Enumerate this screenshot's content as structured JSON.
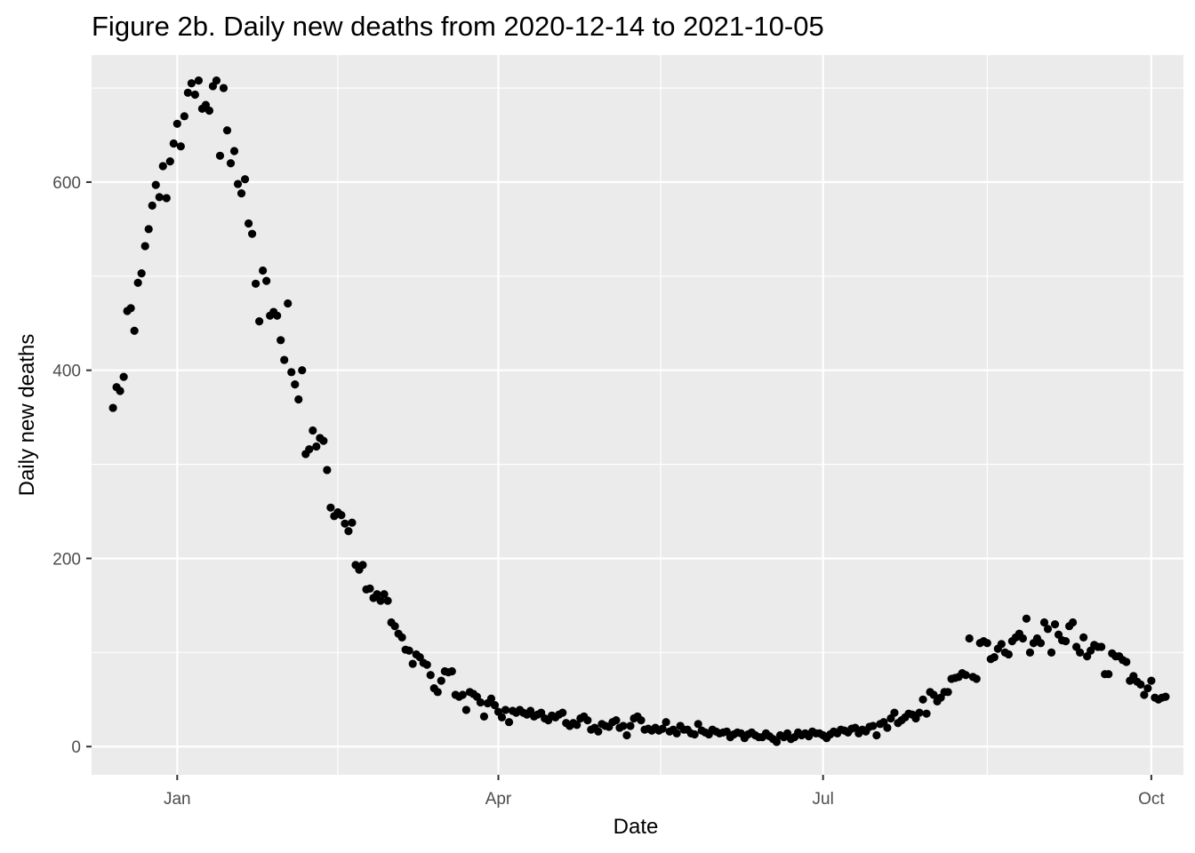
{
  "chart_data": {
    "type": "scatter",
    "title": "Figure 2b. Daily new deaths from 2020-12-14 to 2021-10-05",
    "xlabel": "Date",
    "ylabel": "Daily new deaths",
    "x_start": "2020-12-14",
    "x_end": "2021-10-05",
    "xlim": [
      "2020-12-08",
      "2021-10-10"
    ],
    "ylim": [
      -30,
      735
    ],
    "x_ticks": [
      {
        "date": "2021-01-01",
        "label": "Jan"
      },
      {
        "date": "2021-04-01",
        "label": "Apr"
      },
      {
        "date": "2021-07-01",
        "label": "Jul"
      },
      {
        "date": "2021-10-01",
        "label": "Oct"
      }
    ],
    "y_ticks": [
      {
        "value": 0,
        "label": "0"
      },
      {
        "value": 200,
        "label": "200"
      },
      {
        "value": 400,
        "label": "400"
      },
      {
        "value": 600,
        "label": "600"
      }
    ],
    "grid": true,
    "panel_background": "#ebebeb",
    "grid_color": "#ffffff",
    "point_color": "#000000",
    "series": [
      {
        "values": [
          360,
          382,
          378,
          393,
          463,
          466,
          442,
          493,
          503,
          532,
          550,
          575,
          597,
          584,
          617,
          583,
          622,
          641,
          662,
          638,
          670,
          695,
          705,
          693,
          708,
          678,
          682,
          676,
          702,
          708,
          628,
          700,
          655,
          620,
          633,
          598,
          588,
          603,
          556,
          545,
          492,
          452,
          506,
          495,
          458,
          462,
          458,
          432,
          411,
          471,
          398,
          385,
          369,
          400,
          311,
          316,
          336,
          319,
          328,
          325,
          294,
          254,
          245,
          249,
          246,
          237,
          229,
          238,
          193,
          188,
          193,
          167,
          168,
          158,
          162,
          155,
          162,
          155,
          132,
          128,
          120,
          116,
          103,
          102,
          88,
          98,
          95,
          89,
          87,
          76,
          62,
          58,
          70,
          80,
          79,
          80,
          55,
          53,
          55,
          39,
          58,
          56,
          53,
          47,
          32,
          46,
          51,
          44,
          37,
          31,
          39,
          26,
          38,
          36,
          39,
          36,
          34,
          38,
          32,
          34,
          36,
          30,
          28,
          33,
          31,
          34,
          36,
          25,
          22,
          25,
          23,
          30,
          32,
          28,
          18,
          20,
          16,
          24,
          22,
          21,
          26,
          28,
          20,
          22,
          12,
          22,
          30,
          32,
          28,
          18,
          19,
          17,
          20,
          17,
          19,
          26,
          16,
          18,
          14,
          22,
          18,
          18,
          14,
          13,
          24,
          17,
          15,
          13,
          18,
          16,
          14,
          15,
          16,
          10,
          13,
          15,
          14,
          9,
          13,
          15,
          12,
          10,
          10,
          14,
          11,
          8,
          5,
          12,
          10,
          14,
          8,
          10,
          15,
          12,
          14,
          11,
          16,
          14,
          14,
          12,
          9,
          13,
          16,
          14,
          18,
          17,
          15,
          19,
          20,
          14,
          18,
          16,
          21,
          22,
          12,
          24,
          26,
          20,
          30,
          36,
          25,
          28,
          31,
          35,
          34,
          30,
          36,
          50,
          35,
          58,
          55,
          48,
          52,
          58,
          58,
          72,
          73,
          74,
          78,
          76,
          115,
          74,
          72,
          110,
          112,
          110,
          93,
          95,
          104,
          109,
          100,
          98,
          112,
          116,
          120,
          115,
          136,
          100,
          110,
          115,
          110,
          132,
          125,
          100,
          130,
          119,
          113,
          112,
          128,
          132,
          106,
          100,
          116,
          96,
          102,
          108,
          106,
          106,
          77,
          77,
          99,
          96,
          96,
          92,
          90,
          70,
          75,
          69,
          66,
          55,
          62,
          70,
          52,
          50,
          52,
          53
        ]
      }
    ]
  }
}
